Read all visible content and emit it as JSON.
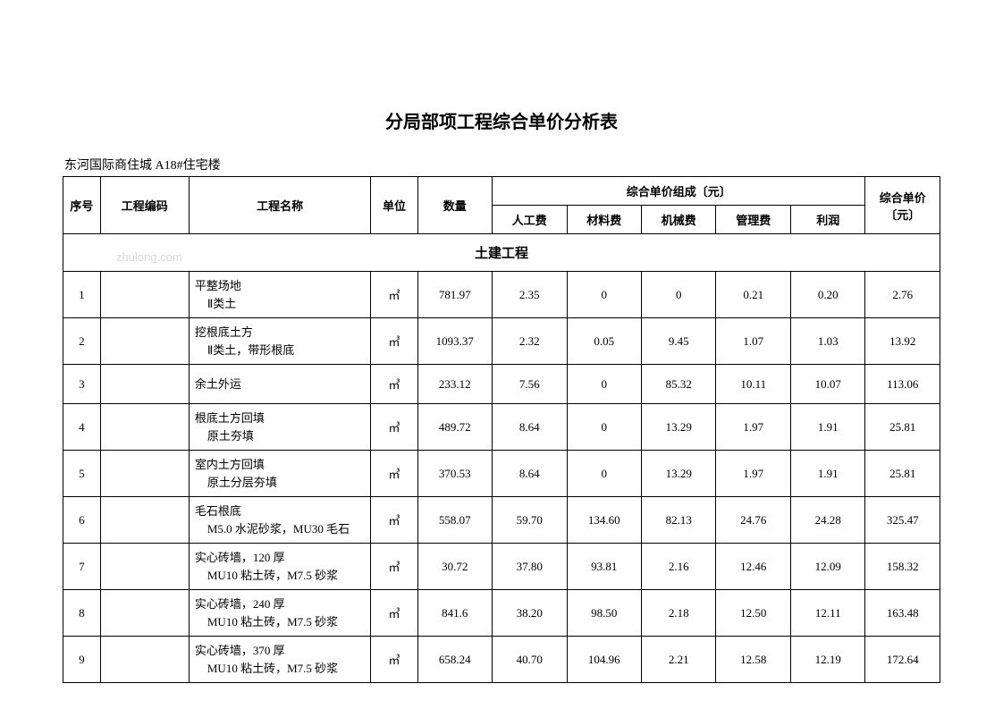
{
  "title": "分局部项工程综合单价分析表",
  "subtitle": "东河国际商住城 A18#住宅楼",
  "watermark": "zhulong.com",
  "headers": {
    "seq": "序号",
    "code": "工程编码",
    "name": "工程名称",
    "unit": "单位",
    "qty": "数量",
    "composition": "综合单价组成〔元〕",
    "labor": "人工费",
    "material": "材料费",
    "machine": "机械费",
    "mgmt": "管理费",
    "profit": "利润",
    "total": "综合单价〔元〕"
  },
  "section": "土建工程",
  "rows": [
    {
      "seq": "1",
      "name": "平整场地",
      "sub": "Ⅱ类土",
      "unit": "㎡",
      "qty": "781.97",
      "labor": "2.35",
      "material": "0",
      "machine": "0",
      "mgmt": "0.21",
      "profit": "0.20",
      "total": "2.76"
    },
    {
      "seq": "2",
      "name": "挖根底土方",
      "sub": "Ⅱ类土，带形根底",
      "unit": "㎥",
      "qty": "1093.37",
      "labor": "2.32",
      "material": "0.05",
      "machine": "9.45",
      "mgmt": "1.07",
      "profit": "1.03",
      "total": "13.92"
    },
    {
      "seq": "3",
      "name": "余土外运",
      "sub": "",
      "unit": "㎥",
      "qty": "233.12",
      "labor": "7.56",
      "material": "0",
      "machine": "85.32",
      "mgmt": "10.11",
      "profit": "10.07",
      "total": "113.06"
    },
    {
      "seq": "4",
      "name": "根底土方回填",
      "sub": "原土夯填",
      "unit": "㎥",
      "qty": "489.72",
      "labor": "8.64",
      "material": "0",
      "machine": "13.29",
      "mgmt": "1.97",
      "profit": "1.91",
      "total": "25.81"
    },
    {
      "seq": "5",
      "name": "室内土方回填",
      "sub": "原土分层夯填",
      "unit": "㎥",
      "qty": "370.53",
      "labor": "8.64",
      "material": "0",
      "machine": "13.29",
      "mgmt": "1.97",
      "profit": "1.91",
      "total": "25.81"
    },
    {
      "seq": "6",
      "name": "毛石根底",
      "sub": "M5.0 水泥砂浆，MU30 毛石",
      "unit": "㎥",
      "qty": "558.07",
      "labor": "59.70",
      "material": "134.60",
      "machine": "82.13",
      "mgmt": "24.76",
      "profit": "24.28",
      "total": "325.47"
    },
    {
      "seq": "7",
      "name": "实心砖墙，120 厚",
      "sub": "MU10 粘土砖，M7.5 砂浆",
      "unit": "㎥",
      "qty": "30.72",
      "labor": "37.80",
      "material": "93.81",
      "machine": "2.16",
      "mgmt": "12.46",
      "profit": "12.09",
      "total": "158.32"
    },
    {
      "seq": "8",
      "name": "实心砖墙，240 厚",
      "sub": "MU10 粘土砖，M7.5 砂浆",
      "unit": "㎥",
      "qty": "841.6",
      "labor": "38.20",
      "material": "98.50",
      "machine": "2.18",
      "mgmt": "12.50",
      "profit": "12.11",
      "total": "163.48"
    },
    {
      "seq": "9",
      "name": "实心砖墙，370 厚",
      "sub": "MU10 粘土砖，M7.5 砂浆",
      "unit": "㎥",
      "qty": "658.24",
      "labor": "40.70",
      "material": "104.96",
      "machine": "2.21",
      "mgmt": "12.58",
      "profit": "12.19",
      "total": "172.64"
    }
  ]
}
